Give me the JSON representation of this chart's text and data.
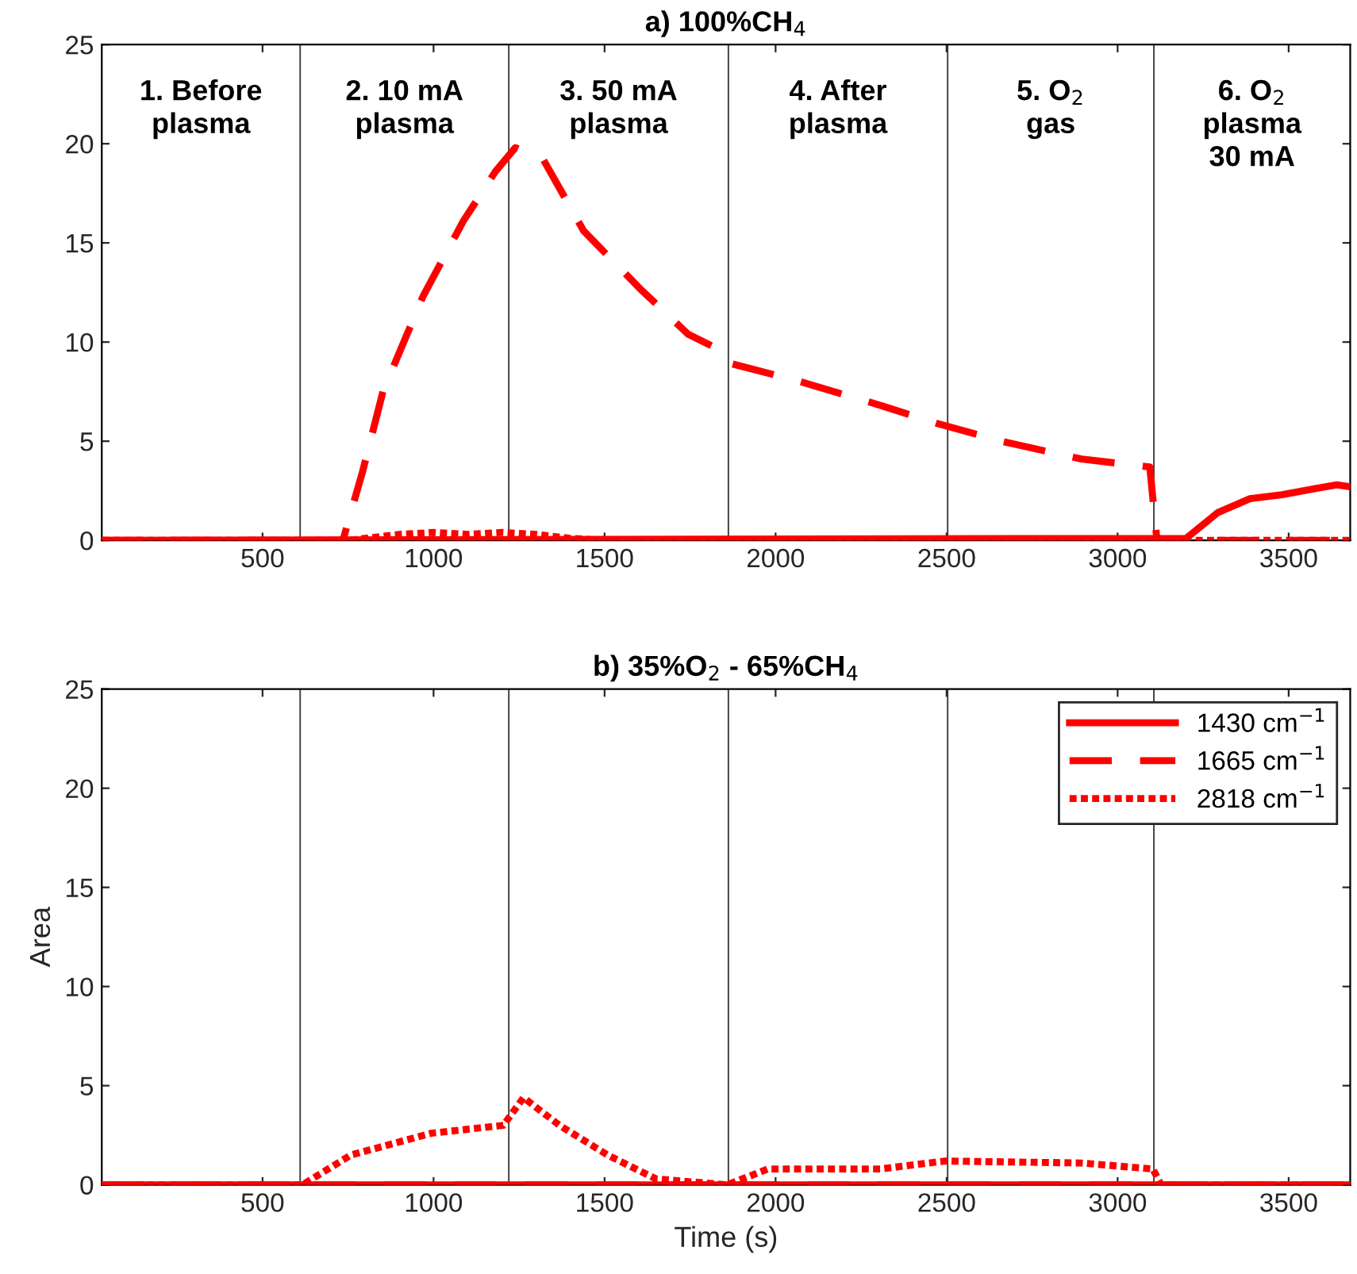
{
  "chart_data": [
    {
      "type": "line",
      "title": "a) 100%CH$_{4}$",
      "xlim": [
        30,
        3680
      ],
      "ylim": [
        0,
        25
      ],
      "xticks": [
        500,
        1000,
        1500,
        2000,
        2500,
        3000,
        3500
      ],
      "yticks": [
        0,
        5,
        10,
        15,
        20,
        25
      ],
      "grid": false,
      "legend": false,
      "marker": "none",
      "series": [
        {
          "color": "#ff0000",
          "line_style": "solid",
          "x": [
            30,
            3200,
            3293,
            3387,
            3481,
            3575,
            3641,
            3680
          ],
          "values": [
            0,
            0.1,
            1.4,
            2.1,
            2.3,
            2.6,
            2.8,
            2.7
          ]
        },
        {
          "color": "#ff0000",
          "line_style": "dashed",
          "x": [
            30,
            735,
            793,
            852,
            969,
            1087,
            1181,
            1239,
            1321,
            1439,
            1603,
            1744,
            1814,
            1873,
            2073,
            2308,
            2472,
            2660,
            2894,
            3094,
            3115,
            3680
          ],
          "values": [
            0,
            0,
            3.5,
            7.5,
            12.3,
            16.1,
            18.6,
            19.8,
            19.2,
            15.6,
            12.7,
            10.4,
            9.8,
            8.9,
            8.0,
            6.8,
            5.9,
            5.0,
            4.1,
            3.7,
            0,
            0
          ]
        },
        {
          "color": "#ff0000",
          "line_style": "dotted",
          "x": [
            30,
            750,
            900,
            1000,
            1100,
            1200,
            1300,
            1400,
            1500,
            3680
          ],
          "values": [
            0,
            0,
            0.3,
            0.4,
            0.3,
            0.4,
            0.3,
            0.1,
            0,
            0
          ]
        }
      ],
      "ref_lines": [
        {
          "axis": "x",
          "value": 610,
          "color": "#404040"
        },
        {
          "axis": "x",
          "value": 1220,
          "color": "#404040"
        },
        {
          "axis": "x",
          "value": 1862,
          "color": "#404040"
        },
        {
          "axis": "x",
          "value": 2503,
          "color": "#404040"
        },
        {
          "axis": "x",
          "value": 3106,
          "color": "#404040"
        }
      ],
      "annotations": [
        "1. Before\nplasma",
        "2. 10 mA\nplasma",
        "3. 50 mA\nplasma",
        "4. After\nplasma",
        "5. O$_{2}$\ngas",
        "6. O$_{2}$\nplasma\n30 mA"
      ]
    },
    {
      "type": "line",
      "title": "b) 35%O$_{2}$ - 65%CH$_{4}$",
      "xlabel": "Time (s)",
      "ylabel": "Area",
      "xlim": [
        30,
        3680
      ],
      "ylim": [
        0,
        25
      ],
      "xticks": [
        500,
        1000,
        1500,
        2000,
        2500,
        3000,
        3500
      ],
      "yticks": [
        0,
        5,
        10,
        15,
        20,
        25
      ],
      "grid": false,
      "legend": "top right",
      "marker": "none",
      "series": [
        {
          "name": "1430 cm$^{−1}$",
          "color": "#ff0000",
          "line_style": "solid",
          "x": [
            30,
            3680
          ],
          "values": [
            0,
            0
          ]
        },
        {
          "name": "1665 cm$^{−1}$",
          "color": "#ff0000",
          "line_style": "dashed",
          "x": [
            30,
            3680
          ],
          "values": [
            0,
            0
          ]
        },
        {
          "name": "2818 cm$^{−1}$",
          "color": "#ff0000",
          "line_style": "dotted",
          "x": [
            30,
            617,
            758,
            993,
            1204,
            1263,
            1368,
            1509,
            1650,
            1858,
            1978,
            2307,
            2495,
            2894,
            3103,
            3127,
            3680
          ],
          "values": [
            0,
            0,
            1.5,
            2.6,
            3,
            4.4,
            3,
            1.5,
            0.3,
            0,
            0.8,
            0.8,
            1.2,
            1.1,
            0.8,
            0,
            0
          ]
        }
      ],
      "ref_lines": [
        {
          "axis": "x",
          "value": 610,
          "color": "#404040"
        },
        {
          "axis": "x",
          "value": 1220,
          "color": "#404040"
        },
        {
          "axis": "x",
          "value": 1862,
          "color": "#404040"
        },
        {
          "axis": "x",
          "value": 2503,
          "color": "#404040"
        },
        {
          "axis": "x",
          "value": 3106,
          "color": "#404040"
        }
      ]
    }
  ]
}
